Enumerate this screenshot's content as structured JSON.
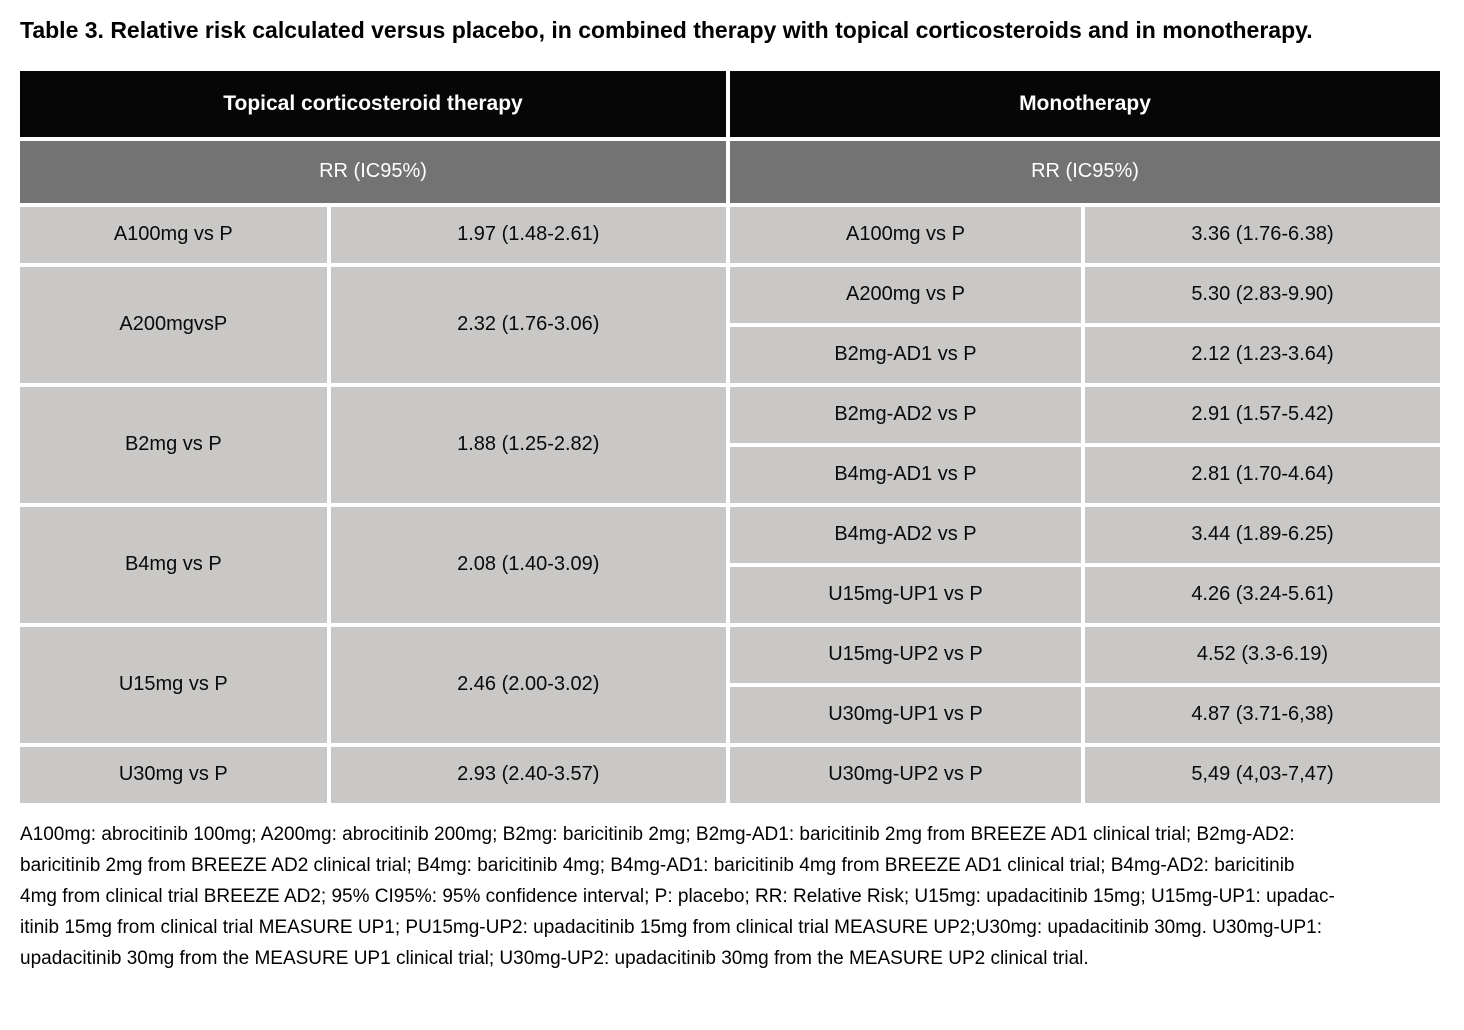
{
  "title": "Table 3. Relative risk calculated versus placebo, in combined therapy with topical corticosteroids and in monotherapy.",
  "colors": {
    "page_bg": "#ffffff",
    "header_bg": "#060606",
    "header_text": "#ffffff",
    "subheader_bg": "#737373",
    "subheader_text": "#ffffff",
    "cell_bg": "#c9c8c6",
    "cell_text": "#0a0a0a",
    "title_text": "#000000"
  },
  "table": {
    "sections": [
      {
        "header": "Topical corticosteroid therapy",
        "subheader": "RR (IC95%)"
      },
      {
        "header": "Monotherapy",
        "subheader": "RR (IC95%)"
      }
    ],
    "left_rows": [
      {
        "label": "A100mg vs P",
        "value": "1.97 (1.48-2.61)",
        "span": 1
      },
      {
        "label": "A200mgvsP",
        "value": "2.32 (1.76-3.06)",
        "span": 2
      },
      {
        "label": "B2mg vs P",
        "value": "1.88 (1.25-2.82)",
        "span": 2
      },
      {
        "label": "B4mg vs P",
        "value": "2.08 (1.40-3.09)",
        "span": 2
      },
      {
        "label": "U15mg vs P",
        "value": "2.46 (2.00-3.02)",
        "span": 2
      },
      {
        "label": "U30mg vs P",
        "value": "2.93 (2.40-3.57)",
        "span": 1
      }
    ],
    "right_rows": [
      {
        "label": "A100mg vs P",
        "value": "3.36 (1.76-6.38)"
      },
      {
        "label": "A200mg vs P",
        "value": "5.30 (2.83-9.90)"
      },
      {
        "label": "B2mg-AD1 vs P",
        "value": "2.12 (1.23-3.64)"
      },
      {
        "label": "B2mg-AD2 vs P",
        "value": "2.91 (1.57-5.42)"
      },
      {
        "label": "B4mg-AD1 vs P",
        "value": "2.81 (1.70-4.64)"
      },
      {
        "label": "B4mg-AD2 vs P",
        "value": "3.44 (1.89-6.25)"
      },
      {
        "label": "U15mg-UP1 vs P",
        "value": "4.26 (3.24-5.61)"
      },
      {
        "label": "U15mg-UP2 vs P",
        "value": "4.52 (3.3-6.19)"
      },
      {
        "label": "U30mg-UP1 vs P",
        "value": "4.87 (3.71-6,38)"
      },
      {
        "label": "U30mg-UP2 vs P",
        "value": "5,49 (4,03-7,47)"
      }
    ]
  },
  "footnote_lines": [
    "A100mg: abrocitinib 100mg; A200mg: abrocitinib 200mg; B2mg: baricitinib 2mg; B2mg-AD1: baricitinib 2mg from BREEZE AD1 clinical trial; B2mg-AD2:",
    "baricitinib 2mg from BREEZE AD2 clinical trial; B4mg: baricitinib 4mg; B4mg-AD1: baricitinib 4mg from BREEZE AD1 clinical trial; B4mg-AD2: baricitinib",
    "4mg from clinical trial BREEZE AD2; 95% CI95%: 95% confidence interval; P: placebo; RR: Relative Risk; U15mg: upadacitinib 15mg; U15mg-UP1: upadac-",
    "itinib 15mg from clinical trial MEASURE UP1; PU15mg-UP2: upadacitinib 15mg from clinical trial MEASURE UP2;U30mg: upadacitinib 30mg. U30mg-UP1:",
    "upadacitinib 30mg from the MEASURE UP1 clinical trial; U30mg-UP2: upadacitinib 30mg from the MEASURE UP2 clinical trial."
  ]
}
